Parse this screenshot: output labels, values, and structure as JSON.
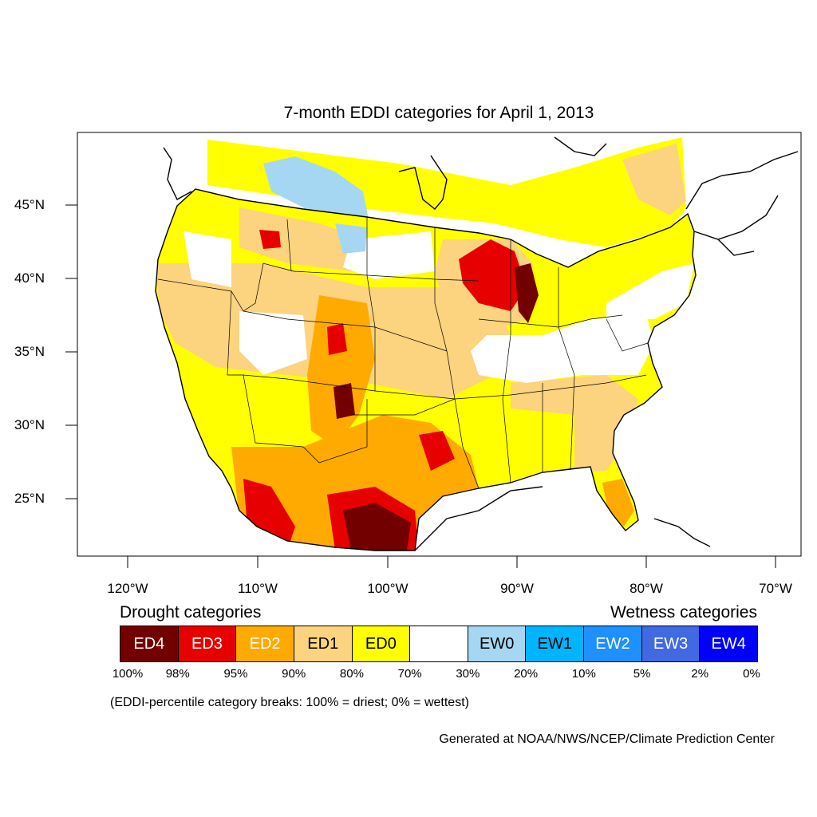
{
  "title": "7-month EDDI categories for April 1, 2013",
  "lat_labels": [
    "45°N",
    "40°N",
    "35°N",
    "30°N",
    "25°N"
  ],
  "lon_labels": [
    "120°W",
    "110°W",
    "100°W",
    "90°W",
    "80°W",
    "70°W"
  ],
  "legend": {
    "drought_heading": "Drought categories",
    "wetness_heading": "Wetness categories",
    "categories": [
      {
        "label": "ED4",
        "color": "#730000",
        "text_color": "#ffffff"
      },
      {
        "label": "ED3",
        "color": "#e60000",
        "text_color": "#ffffff"
      },
      {
        "label": "ED2",
        "color": "#ffaa00",
        "text_color": "#ffffff"
      },
      {
        "label": "ED1",
        "color": "#fcd37f",
        "text_color": "#000000"
      },
      {
        "label": "ED0",
        "color": "#ffff00",
        "text_color": "#000000"
      },
      {
        "label": "",
        "color": "#ffffff",
        "text_color": "#000000"
      },
      {
        "label": "EW0",
        "color": "#a6d7f2",
        "text_color": "#000000"
      },
      {
        "label": "EW1",
        "color": "#00b4ff",
        "text_color": "#000000"
      },
      {
        "label": "EW2",
        "color": "#1e90ff",
        "text_color": "#ffffff"
      },
      {
        "label": "EW3",
        "color": "#4169e1",
        "text_color": "#ffffff"
      },
      {
        "label": "EW4",
        "color": "#0000ff",
        "text_color": "#ffffff"
      }
    ],
    "breaks": [
      "100%",
      "98%",
      "95%",
      "90%",
      "80%",
      "70%",
      "30%",
      "20%",
      "10%",
      "5%",
      "2%",
      "0%"
    ]
  },
  "note": "(EDDI-percentile category breaks: 100% = driest; 0% = wettest)",
  "credit": "Generated at NOAA/NWS/NCEP/Climate Prediction Center"
}
